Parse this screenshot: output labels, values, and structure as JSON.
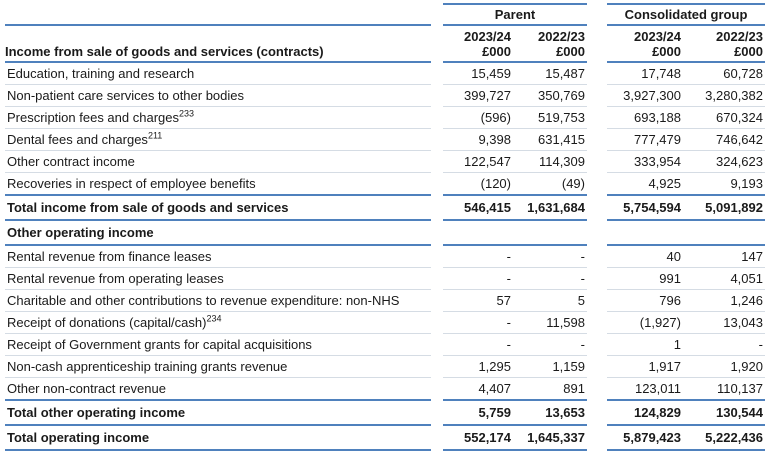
{
  "table": {
    "accent_color": "#4f81bd",
    "separator_color": "#d5dce4",
    "groups": {
      "parent": "Parent",
      "consolidated": "Consolidated group"
    },
    "columns": {
      "year1": "2023/24",
      "year2": "2022/23",
      "unit": "£000"
    },
    "section1_header": "Income from sale of goods and services (contracts)",
    "rows": [
      {
        "label": "Education, training and research",
        "p1": "15,459",
        "p2": "15,487",
        "c1": "17,748",
        "c2": "60,728"
      },
      {
        "label": "Non-patient care services to other bodies",
        "p1": "399,727",
        "p2": "350,769",
        "c1": "3,927,300",
        "c2": "3,280,382"
      },
      {
        "label": "Prescription fees and charges",
        "sup": "233",
        "p1": "(596)",
        "p2": "519,753",
        "c1": "693,188",
        "c2": "670,324"
      },
      {
        "label": "Dental fees and charges",
        "sup": "211",
        "p1": "9,398",
        "p2": "631,415",
        "c1": "777,479",
        "c2": "746,642"
      },
      {
        "label": "Other contract income",
        "p1": "122,547",
        "p2": "114,309",
        "c1": "333,954",
        "c2": "324,623"
      },
      {
        "label": "Recoveries in respect of employee benefits",
        "p1": "(120)",
        "p2": "(49)",
        "c1": "4,925",
        "c2": "9,193"
      },
      {
        "label": "Total income from sale of goods and services",
        "p1": "546,415",
        "p2": "1,631,684",
        "c1": "5,754,594",
        "c2": "5,091,892"
      },
      {
        "label": "Other operating income",
        "p1": "",
        "p2": "",
        "c1": "",
        "c2": ""
      },
      {
        "label": "Rental revenue from finance leases",
        "p1": "-",
        "p2": "-",
        "c1": "40",
        "c2": "147"
      },
      {
        "label": "Rental revenue from operating leases",
        "p1": "-",
        "p2": "-",
        "c1": "991",
        "c2": "4,051"
      },
      {
        "label": "Charitable and other contributions to revenue expenditure: non-NHS",
        "p1": "57",
        "p2": "5",
        "c1": "796",
        "c2": "1,246"
      },
      {
        "label": "Receipt of donations (capital/cash)",
        "sup": "234",
        "p1": "-",
        "p2": "11,598",
        "c1": "(1,927)",
        "c2": "13,043"
      },
      {
        "label": "Receipt of Government grants for capital acquisitions",
        "p1": "-",
        "p2": "-",
        "c1": "1",
        "c2": "-"
      },
      {
        "label": "Non-cash apprenticeship training grants revenue",
        "p1": "1,295",
        "p2": "1,159",
        "c1": "1,917",
        "c2": "1,920"
      },
      {
        "label": "Other non-contract revenue",
        "p1": "4,407",
        "p2": "891",
        "c1": "123,011",
        "c2": "110,137"
      },
      {
        "label": "Total other operating income",
        "p1": "5,759",
        "p2": "13,653",
        "c1": "124,829",
        "c2": "130,544"
      },
      {
        "label": "Total operating income",
        "p1": "552,174",
        "p2": "1,645,337",
        "c1": "5,879,423",
        "c2": "5,222,436"
      }
    ]
  }
}
